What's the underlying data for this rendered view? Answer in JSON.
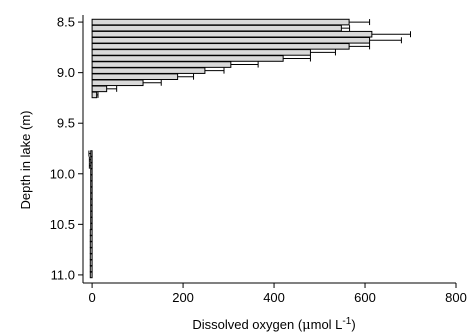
{
  "chart_data": {
    "type": "bar",
    "orientation": "horizontal",
    "title": "",
    "xlabel_main": "Dissolved oxygen (",
    "xlabel_mu": "μ",
    "xlabel_rest": "mol L",
    "xlabel_sup": "-1",
    "xlabel_close": ")",
    "ylabel": "Depth in lake (m)",
    "xlim": [
      -20,
      800
    ],
    "ylim": [
      8.43,
      11.08
    ],
    "y_inverted": true,
    "grid": false,
    "legend": "none",
    "colors": {
      "bar_fill": "#d9d9d9",
      "bar_stroke": "#000000",
      "axis": "#000000"
    },
    "x_ticks": [
      {
        "value": 0,
        "label": "0"
      },
      {
        "value": 200,
        "label": "200"
      },
      {
        "value": 400,
        "label": "400"
      },
      {
        "value": 600,
        "label": "600"
      },
      {
        "value": 800,
        "label": "800"
      }
    ],
    "y_ticks": [
      {
        "value": 8.5,
        "label": "8.5"
      },
      {
        "value": 9.0,
        "label": "9.0"
      },
      {
        "value": 9.5,
        "label": "9.5"
      },
      {
        "value": 10.0,
        "label": "10.0"
      },
      {
        "value": 10.5,
        "label": "10.5"
      },
      {
        "value": 11.0,
        "label": "11.0"
      }
    ],
    "bars": [
      {
        "depth": 8.5,
        "value": 565,
        "error": 45
      },
      {
        "depth": 8.56,
        "value": 548,
        "error": 18
      },
      {
        "depth": 8.62,
        "value": 615,
        "error": 85
      },
      {
        "depth": 8.68,
        "value": 610,
        "error": 70
      },
      {
        "depth": 8.74,
        "value": 565,
        "error": 45
      },
      {
        "depth": 8.8,
        "value": 480,
        "error": 55
      },
      {
        "depth": 8.86,
        "value": 420,
        "error": 60
      },
      {
        "depth": 8.92,
        "value": 305,
        "error": 60
      },
      {
        "depth": 8.98,
        "value": 248,
        "error": 42
      },
      {
        "depth": 9.04,
        "value": 188,
        "error": 35
      },
      {
        "depth": 9.1,
        "value": 112,
        "error": 40
      },
      {
        "depth": 9.16,
        "value": 32,
        "error": 22
      },
      {
        "depth": 9.22,
        "value": 10,
        "error": 3
      },
      {
        "depth": 9.8,
        "value": -3,
        "error": 4
      },
      {
        "depth": 9.86,
        "value": -3,
        "error": 3
      },
      {
        "depth": 9.92,
        "value": -3,
        "error": 3
      },
      {
        "depth": 9.98,
        "value": -3,
        "error": 0
      },
      {
        "depth": 10.04,
        "value": -3,
        "error": 0
      },
      {
        "depth": 10.1,
        "value": -3,
        "error": 0
      },
      {
        "depth": 10.16,
        "value": -3,
        "error": 0
      },
      {
        "depth": 10.22,
        "value": -3,
        "error": 0
      },
      {
        "depth": 10.28,
        "value": -3,
        "error": 0
      },
      {
        "depth": 10.34,
        "value": -3,
        "error": 0
      },
      {
        "depth": 10.4,
        "value": -3,
        "error": 0
      },
      {
        "depth": 10.46,
        "value": -3,
        "error": 0
      },
      {
        "depth": 10.52,
        "value": -3,
        "error": 0
      },
      {
        "depth": 10.58,
        "value": -4,
        "error": 0
      },
      {
        "depth": 10.64,
        "value": -4,
        "error": 0
      },
      {
        "depth": 10.7,
        "value": -4,
        "error": 0
      },
      {
        "depth": 10.76,
        "value": -4,
        "error": 0
      },
      {
        "depth": 10.82,
        "value": -4,
        "error": 0
      },
      {
        "depth": 10.88,
        "value": -4,
        "error": 0
      },
      {
        "depth": 10.94,
        "value": -4,
        "error": 0
      },
      {
        "depth": 11.0,
        "value": -4,
        "error": 0
      }
    ]
  }
}
